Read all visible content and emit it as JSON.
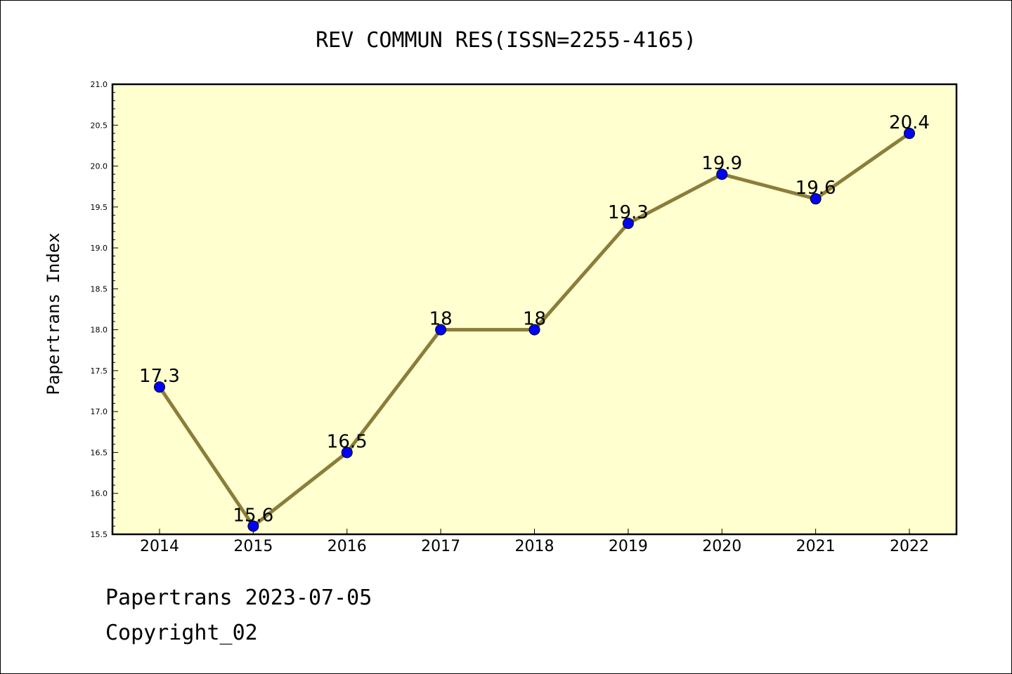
{
  "chart_data": {
    "type": "line",
    "title": "REV COMMUN RES(ISSN=2255-4165)",
    "xlabel": "",
    "ylabel": "Papertrans Index",
    "categories": [
      "2014",
      "2015",
      "2016",
      "2017",
      "2018",
      "2019",
      "2020",
      "2021",
      "2022"
    ],
    "series": [
      {
        "values": [
          17.3,
          15.6,
          16.5,
          18,
          18,
          19.3,
          19.9,
          19.6,
          20.4
        ],
        "data_labels": [
          "17.3",
          "15.6",
          "16.5",
          "18",
          "18",
          "19.3",
          "19.9",
          "19.6",
          "20.4"
        ]
      }
    ],
    "ylim": [
      15.5,
      21.0
    ],
    "yticks": [
      "15.5",
      "16.0",
      "16.5",
      "17.0",
      "17.5",
      "18.0",
      "18.5",
      "19.0",
      "19.5",
      "20.0",
      "20.5",
      "21.0"
    ],
    "grid": false,
    "colors": {
      "plot_background": "#ffffd0",
      "line": "#8b7d3a",
      "marker": "#0000ff"
    }
  },
  "footer": {
    "source_line": "Papertrans 2023-07-05",
    "copyright_line": "Copyright_02"
  }
}
